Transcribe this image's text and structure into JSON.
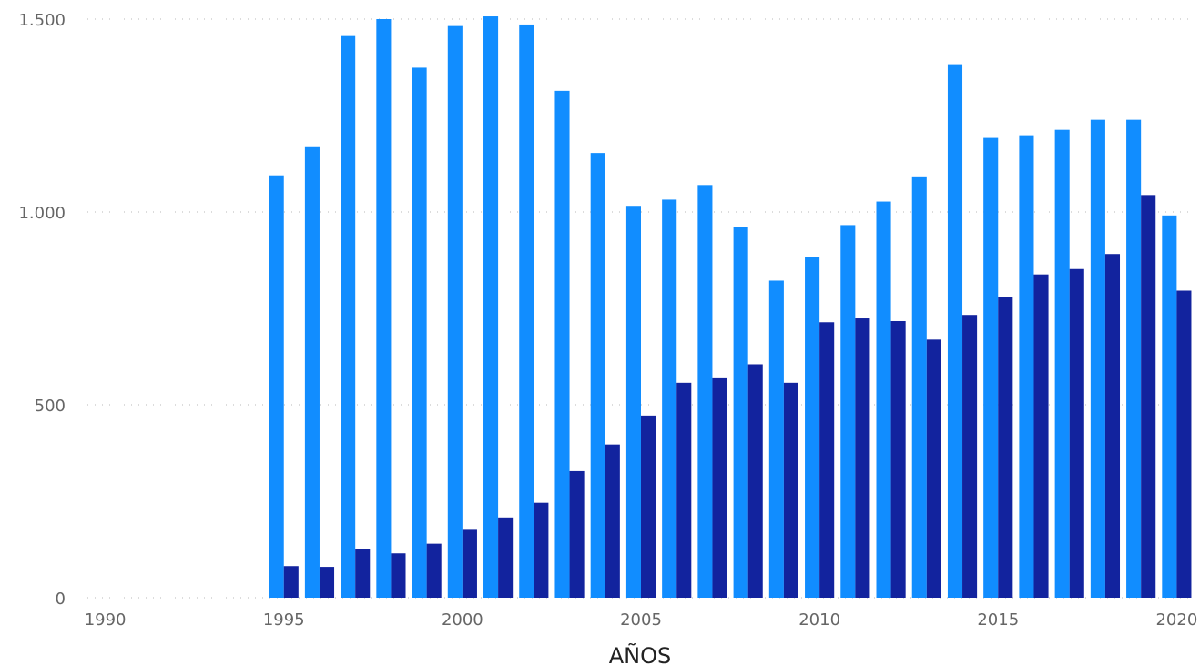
{
  "chart_data": {
    "type": "bar",
    "title": "",
    "xlabel": "AÑOS",
    "ylabel": "",
    "xlim": [
      1989.5,
      2020.5
    ],
    "ylim": [
      0,
      1500
    ],
    "grid": true,
    "legend": "none",
    "x_ticks": [
      1990,
      1995,
      2000,
      2005,
      2010,
      2015,
      2020
    ],
    "x_tick_labels": [
      "1990",
      "1995",
      "2000",
      "2005",
      "2010",
      "2015",
      "2020"
    ],
    "y_ticks": [
      0,
      500,
      1000,
      1500
    ],
    "y_tick_labels": [
      "0",
      "500",
      "1.000",
      "1.500"
    ],
    "x": [
      1995,
      1996,
      1997,
      1998,
      1999,
      2000,
      2001,
      2002,
      2003,
      2004,
      2005,
      2006,
      2007,
      2008,
      2009,
      2010,
      2011,
      2012,
      2013,
      2014,
      2015,
      2016,
      2017,
      2018,
      2019,
      2020
    ],
    "series": [
      {
        "color": "#118dff",
        "values": [
          1095,
          1168,
          1456,
          1500,
          1374,
          1482,
          1507,
          1486,
          1314,
          1153,
          1016,
          1032,
          1070,
          962,
          822,
          884,
          966,
          1027,
          1090,
          1383,
          1192,
          1199,
          1213,
          1239,
          1239,
          991
        ]
      },
      {
        "color": "#12239e",
        "values": [
          82,
          80,
          125,
          115,
          140,
          176,
          208,
          246,
          328,
          397,
          472,
          557,
          571,
          605,
          557,
          714,
          724,
          717,
          669,
          733,
          779,
          838,
          852,
          891,
          1044,
          796
        ]
      }
    ]
  }
}
